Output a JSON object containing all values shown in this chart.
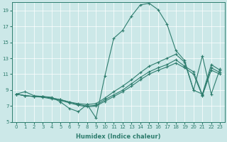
{
  "xlabel": "Humidex (Indice chaleur)",
  "xlim": [
    -0.5,
    23.5
  ],
  "ylim": [
    5,
    20
  ],
  "yticks": [
    5,
    7,
    9,
    11,
    13,
    15,
    17,
    19
  ],
  "xticks": [
    0,
    1,
    2,
    3,
    4,
    5,
    6,
    7,
    8,
    9,
    10,
    11,
    12,
    13,
    14,
    15,
    16,
    17,
    18,
    19,
    20,
    21,
    22,
    23
  ],
  "bg_color": "#cce8e8",
  "line_color": "#2e7d6e",
  "lines": [
    {
      "x": [
        0,
        1,
        2,
        3,
        4,
        5,
        6,
        7,
        8,
        9,
        10,
        11,
        12,
        13,
        14,
        15,
        16,
        17,
        18,
        19,
        20,
        21,
        22,
        23
      ],
      "y": [
        8.5,
        8.8,
        8.3,
        8.2,
        8.1,
        7.5,
        6.7,
        6.3,
        7.2,
        5.5,
        10.8,
        15.5,
        16.5,
        18.3,
        19.7,
        19.9,
        19.1,
        17.3,
        14.0,
        12.7,
        9.0,
        13.3,
        8.5,
        11.7
      ]
    },
    {
      "x": [
        0,
        1,
        2,
        3,
        4,
        5,
        6,
        7,
        8,
        9,
        10,
        11,
        12,
        13,
        14,
        15,
        16,
        17,
        18,
        19,
        20,
        21,
        22,
        23
      ],
      "y": [
        8.5,
        8.3,
        8.2,
        8.2,
        8.0,
        7.8,
        7.5,
        7.3,
        7.2,
        7.3,
        8.0,
        8.8,
        9.5,
        10.3,
        11.2,
        12.0,
        12.5,
        13.0,
        13.5,
        12.5,
        9.0,
        8.5,
        12.2,
        11.5
      ]
    },
    {
      "x": [
        0,
        1,
        2,
        3,
        4,
        5,
        6,
        7,
        8,
        9,
        10,
        11,
        12,
        13,
        14,
        15,
        16,
        17,
        18,
        19,
        20,
        21,
        22,
        23
      ],
      "y": [
        8.5,
        8.3,
        8.2,
        8.2,
        8.0,
        7.8,
        7.5,
        7.2,
        7.0,
        7.1,
        7.8,
        8.4,
        9.0,
        9.8,
        10.6,
        11.3,
        11.8,
        12.2,
        12.8,
        12.0,
        11.3,
        8.4,
        11.8,
        11.2
      ]
    },
    {
      "x": [
        0,
        1,
        2,
        3,
        4,
        5,
        6,
        7,
        8,
        9,
        10,
        11,
        12,
        13,
        14,
        15,
        16,
        17,
        18,
        19,
        20,
        21,
        22,
        23
      ],
      "y": [
        8.5,
        8.3,
        8.2,
        8.1,
        7.9,
        7.7,
        7.4,
        7.1,
        6.9,
        7.0,
        7.6,
        8.2,
        8.8,
        9.5,
        10.3,
        11.0,
        11.5,
        11.9,
        12.4,
        11.8,
        11.0,
        8.3,
        11.5,
        11.0
      ]
    }
  ]
}
